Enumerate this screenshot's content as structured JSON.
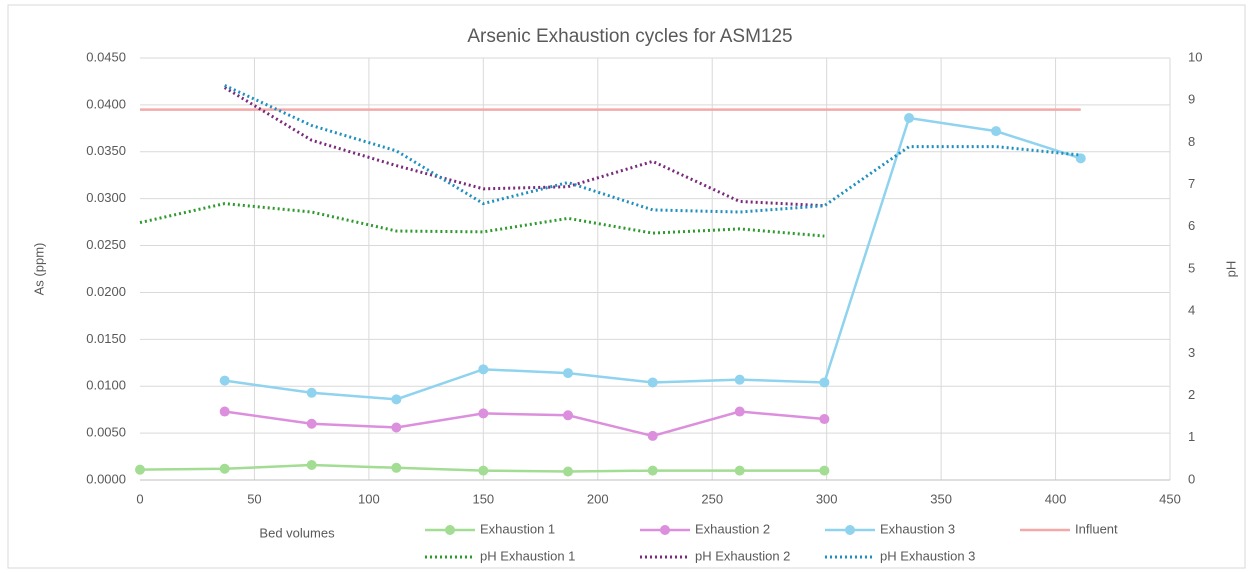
{
  "chart_data": {
    "type": "line",
    "title": "Arsenic Exhaustion cycles for ASM125",
    "xlabel": "Bed volumes",
    "ylabel": "As (ppm)",
    "y2label": "pH",
    "x": [
      0,
      37,
      75,
      112,
      150,
      187,
      224,
      262,
      299,
      336,
      374,
      411
    ],
    "xlim": [
      0,
      450
    ],
    "xticks": [
      0,
      50,
      100,
      150,
      200,
      250,
      300,
      350,
      400,
      450
    ],
    "ylim": [
      0,
      0.045
    ],
    "yticks": [
      {
        "value": 0,
        "label": "0.0000"
      },
      {
        "value": 0.005,
        "label": "0.0050"
      },
      {
        "value": 0.01,
        "label": "0.0100"
      },
      {
        "value": 0.015,
        "label": "0.0150"
      },
      {
        "value": 0.02,
        "label": "0.0200"
      },
      {
        "value": 0.025,
        "label": "0.0250"
      },
      {
        "value": 0.03,
        "label": "0.0300"
      },
      {
        "value": 0.035,
        "label": "0.0350"
      },
      {
        "value": 0.04,
        "label": "0.0400"
      },
      {
        "value": 0.045,
        "label": "0.0450"
      }
    ],
    "y2lim": [
      0,
      10
    ],
    "y2ticks": [
      0,
      1,
      2,
      3,
      4,
      5,
      6,
      7,
      8,
      9,
      10
    ],
    "grid": true,
    "legend": "bottom",
    "series": [
      {
        "name": "Exhaustion 1",
        "color": "#a3dc93",
        "marker": true,
        "values": [
          0.0011,
          0.0012,
          0.0016,
          0.0013,
          0.001,
          0.0009,
          0.001,
          0.001,
          0.001,
          null,
          null,
          null
        ]
      },
      {
        "name": "Exhaustion 2",
        "color": "#dc8fdc",
        "marker": true,
        "values": [
          null,
          0.0073,
          0.006,
          0.0056,
          0.0071,
          0.0069,
          0.0047,
          0.0073,
          0.0065,
          null,
          null,
          null
        ]
      },
      {
        "name": "Exhaustion 3",
        "color": "#8fd3ef",
        "marker": true,
        "values": [
          null,
          0.0106,
          0.0093,
          0.0086,
          0.0118,
          0.0114,
          0.0104,
          0.0107,
          0.0104,
          0.0386,
          0.0372,
          0.0343
        ]
      },
      {
        "name": "Influent",
        "color": "#f4a9a9",
        "marker": false,
        "values": [
          0.0395,
          0.0395,
          0.0395,
          0.0395,
          0.0395,
          0.0395,
          0.0395,
          0.0395,
          0.0395,
          0.0395,
          0.0395,
          0.0395
        ]
      },
      {
        "name": "pH Exhaustion 1",
        "color": "#2e9a2e",
        "dash": "dotted",
        "axis": "y2",
        "values": [
          6.1,
          6.55,
          6.35,
          5.9,
          5.88,
          6.2,
          5.85,
          5.95,
          5.78,
          null,
          null,
          null
        ]
      },
      {
        "name": "pH Exhaustion 2",
        "color": "#7a2a7a",
        "dash": "dotted",
        "axis": "y2",
        "values": [
          null,
          9.3,
          8.05,
          7.45,
          6.9,
          6.95,
          7.55,
          6.6,
          6.5,
          null,
          null,
          null
        ]
      },
      {
        "name": "pH Exhaustion 3",
        "color": "#1f8fbf",
        "dash": "dotted",
        "axis": "y2",
        "values": [
          null,
          9.35,
          8.4,
          7.8,
          6.55,
          7.05,
          6.4,
          6.35,
          6.5,
          7.9,
          7.9,
          7.7
        ]
      }
    ]
  }
}
